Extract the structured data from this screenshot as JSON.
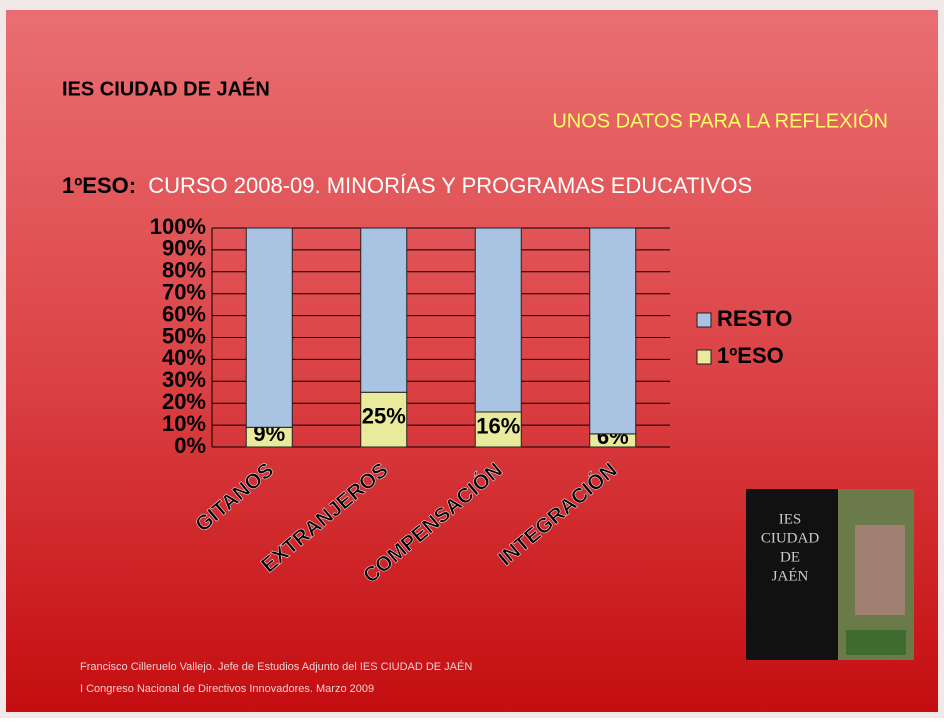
{
  "slide": {
    "heading": "IES CIUDAD DE JAÉN",
    "tagline": "UNOS DATOS PARA LA REFLEXIÓN",
    "subtitle_lead": "1ºESO:",
    "subtitle": "CURSO 2008-09. MINORÍAS Y PROGRAMAS EDUCATIVOS",
    "logo_lines": [
      "IES",
      "CIUDAD",
      "DE",
      "JAÉN"
    ],
    "footer": [
      "Francisco Cilleruelo Vallejo. Jefe de Estudios Adjunto del IES CIUDAD DE JAÉN",
      "I Congreso Nacional de Directivos Innovadores. Marzo 2009"
    ]
  },
  "chart_data": {
    "type": "bar",
    "stacked": true,
    "categories": [
      "GITANOS",
      "EXTRANJEROS",
      "COMPENSACIÓN",
      "INTEGRACIÓN"
    ],
    "series": [
      {
        "name": "1ºESO",
        "color": "#eaea9c",
        "values": [
          9,
          25,
          16,
          6
        ],
        "value_labels": [
          "9%",
          "25%",
          "16%",
          "6%"
        ]
      },
      {
        "name": "RESTO",
        "color": "#a9c3e2",
        "values": [
          91,
          75,
          84,
          94
        ]
      }
    ],
    "ylim": [
      0,
      100
    ],
    "yticks": [
      {
        "value": 0,
        "label": "0%"
      },
      {
        "value": 10,
        "label": "10%"
      },
      {
        "value": 20,
        "label": "20%"
      },
      {
        "value": 30,
        "label": "30%"
      },
      {
        "value": 40,
        "label": "40%"
      },
      {
        "value": 50,
        "label": "50%"
      },
      {
        "value": 60,
        "label": "60%"
      },
      {
        "value": 70,
        "label": "70%"
      },
      {
        "value": 80,
        "label": "80%"
      },
      {
        "value": 90,
        "label": "90%"
      },
      {
        "value": 100,
        "label": "100%"
      }
    ],
    "grid": true,
    "legend": "right"
  }
}
